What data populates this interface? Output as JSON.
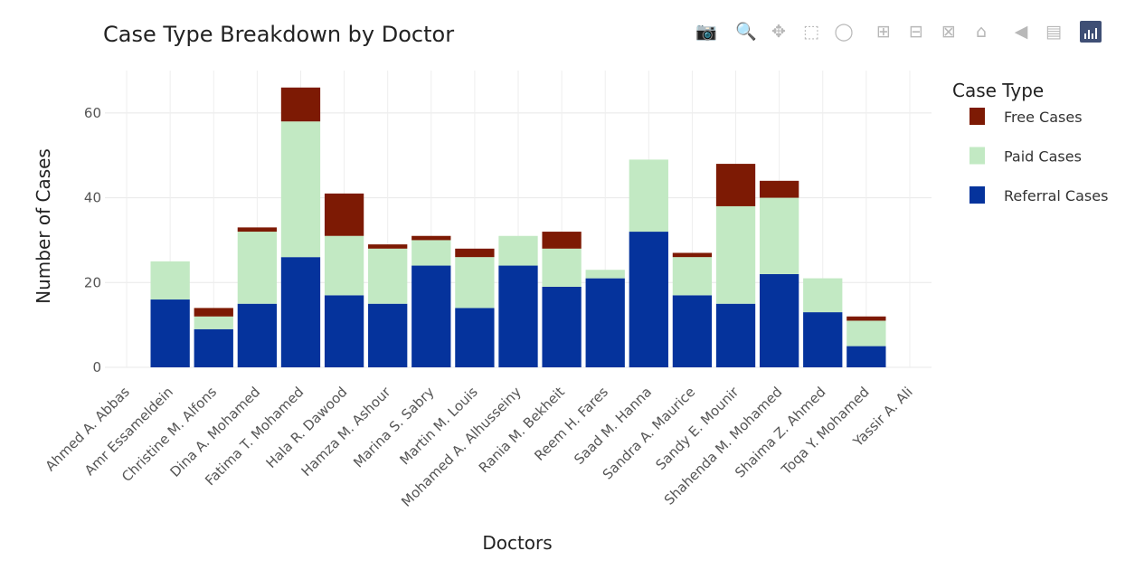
{
  "chart_data": {
    "type": "bar",
    "stacked": true,
    "title": "Case Type Breakdown by Doctor",
    "xlabel": "Doctors",
    "ylabel": "Number of Cases",
    "ylim": [
      0,
      70
    ],
    "yticks": [
      0,
      20,
      40,
      60
    ],
    "grid": true,
    "legend_title": "Case Type",
    "legend_position": "right",
    "categories": [
      "Ahmed A. Abbas",
      "Amr Essameldein",
      "Christine M. Alfons",
      "Dina A. Mohamed",
      "Fatima T. Mohamed",
      "Hala R. Dawood",
      "Hamza M. Ashour",
      "Marina S. Sabry",
      "Martin M. Louis",
      "Mohamed A. Alhusseiny",
      "Rania M. Bekheit",
      "Reem H. Fares",
      "Saad M. Hanna",
      "Sandra A. Maurice",
      "Sandy E. Mounir",
      "Shahenda M. Mohamed",
      "Shaima Z. Ahmed",
      "Toqa Y. Mohamed",
      "Yassir A. Ali"
    ],
    "series": [
      {
        "name": "Referral Cases",
        "color": "#05339c",
        "values": [
          0,
          16,
          9,
          15,
          26,
          17,
          15,
          24,
          14,
          24,
          19,
          21,
          32,
          17,
          15,
          22,
          13,
          5,
          0
        ]
      },
      {
        "name": "Paid Cases",
        "color": "#c2e9c3",
        "values": [
          0,
          9,
          3,
          17,
          32,
          14,
          13,
          6,
          12,
          7,
          9,
          2,
          17,
          9,
          23,
          18,
          8,
          6,
          0
        ]
      },
      {
        "name": "Free Cases",
        "color": "#7d1a04",
        "values": [
          0,
          0,
          2,
          1,
          8,
          10,
          1,
          1,
          2,
          0,
          4,
          0,
          0,
          1,
          10,
          4,
          0,
          1,
          0
        ]
      }
    ],
    "legend_order": [
      "Free Cases",
      "Paid Cases",
      "Referral Cases"
    ]
  },
  "modebar": {
    "icons": [
      "camera-icon",
      "zoom-icon",
      "pan-icon",
      "box-select-icon",
      "lasso-icon",
      "zoom-in-icon",
      "zoom-out-icon",
      "autoscale-icon",
      "reset-axes-icon",
      "hover-closest-icon",
      "hover-compare-icon",
      "plotly-logo-icon"
    ]
  }
}
